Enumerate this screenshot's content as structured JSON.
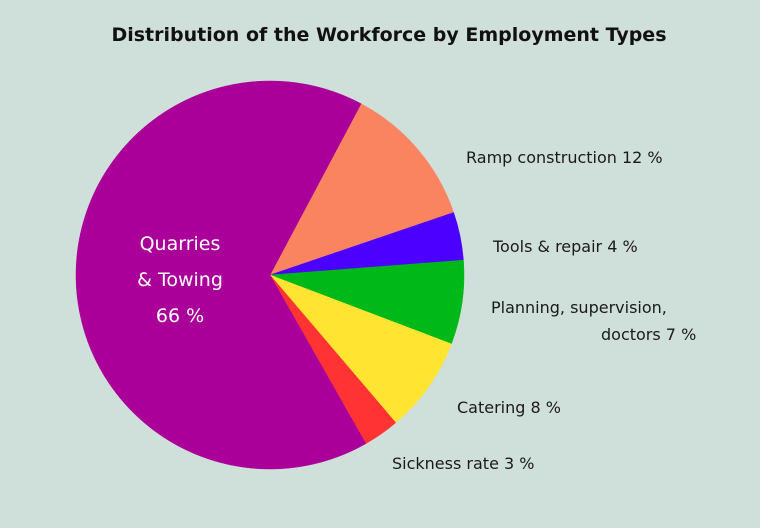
{
  "chart_data": {
    "type": "pie",
    "title": "Distribution of the Workforce by Employment Types",
    "slices": [
      {
        "label_lines": [
          "Ramp construction 12 %"
        ],
        "value": 12,
        "color": "#fa8460"
      },
      {
        "label_lines": [
          "Tools &  repair 4 %"
        ],
        "value": 4,
        "color": "#4c00ff"
      },
      {
        "label_lines": [
          "Planning, supervision,",
          "doctors 7 %"
        ],
        "value": 7,
        "color": "#00b818"
      },
      {
        "label_lines": [
          "Catering 8 %"
        ],
        "value": 8,
        "color": "#ffe532"
      },
      {
        "label_lines": [
          "Sickness rate 3 %"
        ],
        "value": 3,
        "color": "#ff3333"
      },
      {
        "label_lines": [
          "Quarries",
          "& Towing",
          "66 %"
        ],
        "value": 66,
        "color": "#aa0099"
      }
    ],
    "legend": "none",
    "grid": false
  }
}
